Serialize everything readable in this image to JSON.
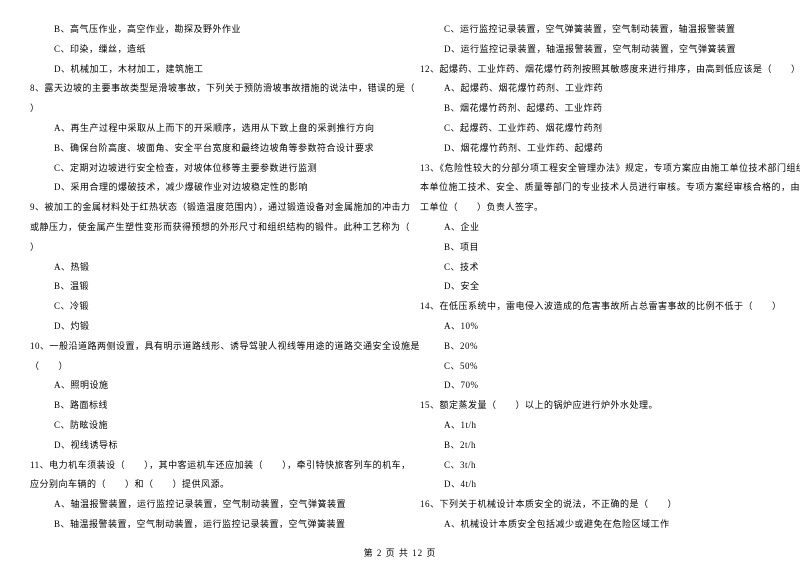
{
  "left_column": [
    {
      "text": "B、高气压作业，高空作业，勘探及野外作业",
      "cls": "indent-1"
    },
    {
      "text": "C、印染，缫丝，造纸",
      "cls": "indent-1"
    },
    {
      "text": "D、机械加工，木材加工，建筑施工",
      "cls": "indent-1"
    },
    {
      "text": "8、露天边坡的主要事故类型是滑坡事故，下列关于预防滑坡事故措施的说法中，错误的是（",
      "cls": "question"
    },
    {
      "text": "）",
      "cls": "question"
    },
    {
      "text": "A、再生产过程中采取从上而下的开采顺序，选用从下致上盘的采剥推行方向",
      "cls": "indent-1"
    },
    {
      "text": "B、确保台阶高度、坡面角、安全平台宽度和最终边坡角等参数符合设计要求",
      "cls": "indent-1"
    },
    {
      "text": "C、定期对边坡进行安全检查，对坡体位移等主要参数进行监测",
      "cls": "indent-1"
    },
    {
      "text": "D、采用合理的爆破技术，减少爆破作业对边坡稳定性的影响",
      "cls": "indent-1"
    },
    {
      "text": "9、被加工的金属材料处于红热状态（锻造温度范围内），通过锻造设备对金属施加的冲击力",
      "cls": "question"
    },
    {
      "text": "或静压力，使金属产生塑性变形而获得预想的外形尺寸和组织结构的锻件。此种工艺称为（",
      "cls": "question"
    },
    {
      "text": "）",
      "cls": "question"
    },
    {
      "text": "A、热锻",
      "cls": "indent-1"
    },
    {
      "text": "B、温锻",
      "cls": "indent-1"
    },
    {
      "text": "C、冷锻",
      "cls": "indent-1"
    },
    {
      "text": "D、灼锻",
      "cls": "indent-1"
    },
    {
      "text": "10、一般沿道路两侧设置，具有明示道路线形、诱导驾驶人视线等用途的道路交通安全设施是",
      "cls": "question"
    },
    {
      "text": "（　　）",
      "cls": "question"
    },
    {
      "text": "A、照明设施",
      "cls": "indent-1"
    },
    {
      "text": "B、路面标线",
      "cls": "indent-1"
    },
    {
      "text": "C、防眩设施",
      "cls": "indent-1"
    },
    {
      "text": "D、视线诱导标",
      "cls": "indent-1"
    },
    {
      "text": "11、电力机车须装设（　　），其中客运机车还应加装（　　），牵引特快旅客列车的机车，",
      "cls": "question"
    },
    {
      "text": "应分别向车辆的（　　）和（　　）提供风源。",
      "cls": "question"
    },
    {
      "text": "A、轴温报警装置，运行监控记录装置，空气制动装置，空气弹簧装置",
      "cls": "indent-1"
    },
    {
      "text": "B、轴温报警装置，空气制动装置，运行监控记录装置，空气弹簧装置",
      "cls": "indent-1"
    }
  ],
  "right_column": [
    {
      "text": "C、运行监控记录装置，空气弹簧装置，空气制动装置，轴温报警装置",
      "cls": "indent-1"
    },
    {
      "text": "D、运行监控记录装置，轴温报警装置，空气制动装置，空气弹簧装置",
      "cls": "indent-1"
    },
    {
      "text": "12、起爆药、工业炸药、烟花爆竹药剂按照其敏感度来进行排序，由高到低应该是（　　）",
      "cls": "question"
    },
    {
      "text": "A、起爆药、烟花爆竹药剂、工业炸药",
      "cls": "indent-1"
    },
    {
      "text": "B、烟花爆竹药剂、起爆药、工业炸药",
      "cls": "indent-1"
    },
    {
      "text": "C、起爆药、工业炸药、烟花爆竹药剂",
      "cls": "indent-1"
    },
    {
      "text": "D、烟花爆竹药剂、工业炸药、起爆药",
      "cls": "indent-1"
    },
    {
      "text": "13、《危险性较大的分部分项工程安全管理办法》规定，专项方案应由施工单位技术部门组织",
      "cls": "question"
    },
    {
      "text": "本单位施工技术、安全、质量等部门的专业技术人员进行审核。专项方案经审核合格的，由施",
      "cls": "question"
    },
    {
      "text": "工单位（　　）负责人签字。",
      "cls": "question"
    },
    {
      "text": "A、企业",
      "cls": "indent-1"
    },
    {
      "text": "B、项目",
      "cls": "indent-1"
    },
    {
      "text": "C、技术",
      "cls": "indent-1"
    },
    {
      "text": "D、安全",
      "cls": "indent-1"
    },
    {
      "text": "14、在低压系统中，雷电侵入波造成的危害事故所占总雷害事故的比例不低于（　　）",
      "cls": "question"
    },
    {
      "text": "A、10%",
      "cls": "indent-1"
    },
    {
      "text": "B、20%",
      "cls": "indent-1"
    },
    {
      "text": "C、50%",
      "cls": "indent-1"
    },
    {
      "text": "D、70%",
      "cls": "indent-1"
    },
    {
      "text": "15、额定蒸发量（　　）以上的锅炉应进行炉外水处理。",
      "cls": "question"
    },
    {
      "text": "A、1t/h",
      "cls": "indent-1"
    },
    {
      "text": "B、2t/h",
      "cls": "indent-1"
    },
    {
      "text": "C、3t/h",
      "cls": "indent-1"
    },
    {
      "text": "D、4t/h",
      "cls": "indent-1"
    },
    {
      "text": "16、下列关于机械设计本质安全的说法，不正确的是（　　）",
      "cls": "question"
    },
    {
      "text": "A、机械设计本质安全包括减少或避免在危险区域工作",
      "cls": "indent-1"
    }
  ],
  "footer": "第 2 页 共 12 页"
}
